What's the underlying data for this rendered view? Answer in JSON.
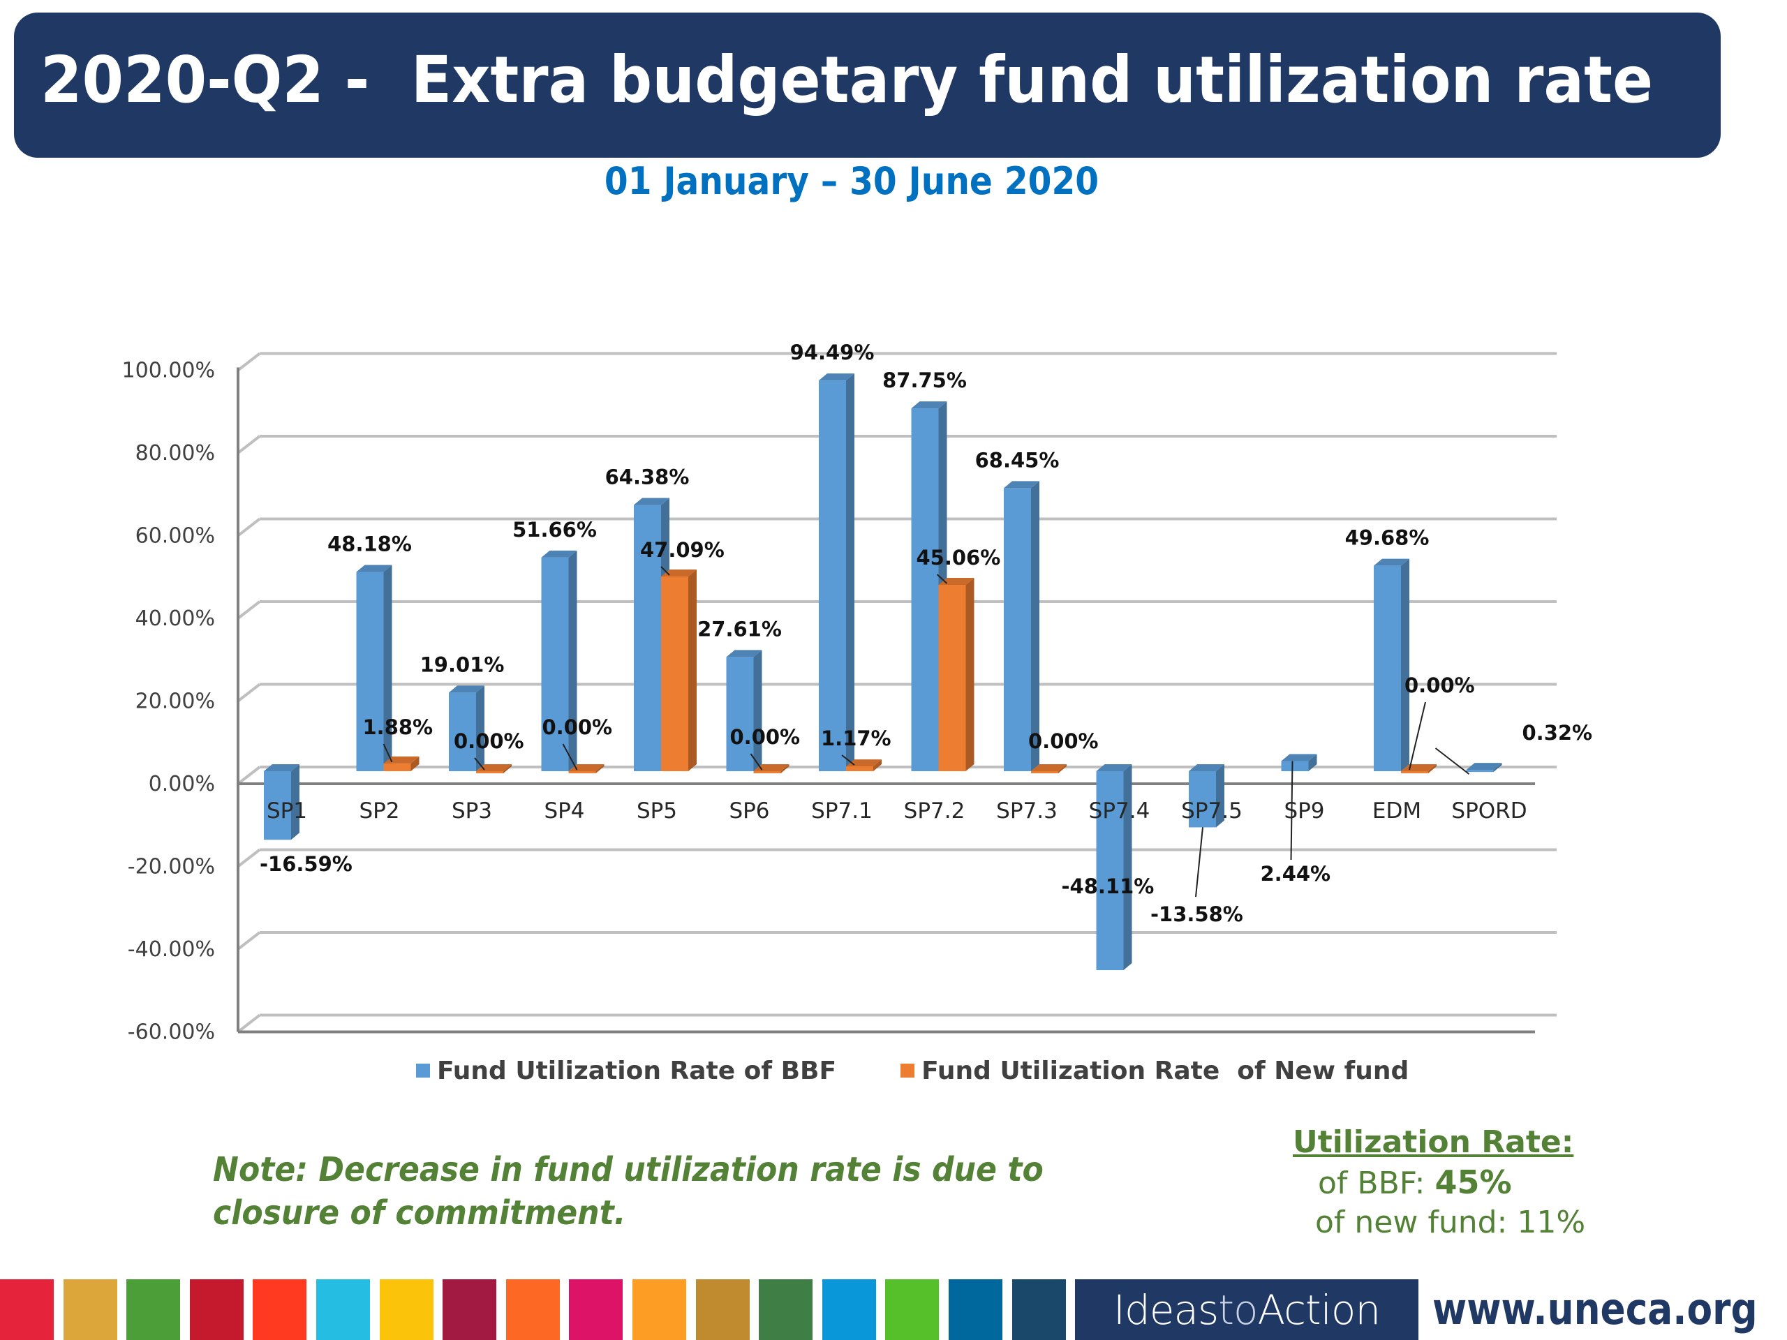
{
  "header": {
    "title": "2020-Q2 -  Extra budgetary fund utilization rate",
    "subtitle": "01 January – 30 June 2020"
  },
  "colors": {
    "title_bar": "#203864",
    "subtitle": "#0070c0",
    "bbf": "#5b9bd5",
    "new_fund": "#ed7d31",
    "note_green": "#538135",
    "grid": "#bfbfbf",
    "axis": "#808080"
  },
  "chart_data": {
    "type": "bar",
    "style": "3d-clustered-column",
    "title": "",
    "xlabel": "",
    "ylabel": "",
    "ylim": [
      -60,
      100
    ],
    "yticks": [
      100,
      80,
      60,
      40,
      20,
      0,
      -20,
      -40,
      -60
    ],
    "ytick_labels": [
      "100.00%",
      "80.00%",
      "60.00%",
      "40.00%",
      "20.00%",
      "0.00%",
      "-20.00%",
      "-40.00%",
      "-60.00%"
    ],
    "grid": true,
    "legend_position": "bottom",
    "categories": [
      "SP1",
      "SP2",
      "SP3",
      "SP4",
      "SP5",
      "SP6",
      "SP7.1",
      "SP7.2",
      "SP7.3",
      "SP7.4",
      "SP7.5",
      "SP9",
      "EDM",
      "SPORD"
    ],
    "series": [
      {
        "name": "Fund Utilization Rate of BBF",
        "color": "#5b9bd5",
        "values": [
          -16.59,
          48.18,
          19.01,
          51.66,
          64.38,
          27.61,
          94.49,
          87.75,
          68.45,
          -48.11,
          -13.58,
          2.44,
          49.68,
          0.32
        ],
        "labels": [
          "-16.59%",
          "48.18%",
          "19.01%",
          "51.66%",
          "64.38%",
          "27.61%",
          "94.49%",
          "87.75%",
          "68.45%",
          "-48.11%",
          "-13.58%",
          "2.44%",
          "49.68%",
          "0.32%"
        ]
      },
      {
        "name": "Fund Utilization Rate  of New fund",
        "color": "#ed7d31",
        "values": [
          null,
          1.88,
          0.0,
          0.0,
          47.09,
          0.0,
          1.17,
          45.06,
          0.0,
          null,
          null,
          null,
          0.0,
          null
        ],
        "labels": [
          null,
          "1.88%",
          "0.00%",
          "0.00%",
          "47.09%",
          "0.00%",
          "1.17%",
          "45.06%",
          "0.00%",
          null,
          null,
          null,
          "0.00%",
          null
        ]
      }
    ]
  },
  "legend": {
    "items": [
      {
        "label": "Fund Utilization Rate of BBF",
        "color": "#5b9bd5"
      },
      {
        "label": "Fund Utilization Rate  of New fund",
        "color": "#ed7d31"
      }
    ]
  },
  "note": {
    "text": "Note: Decrease in fund utilization rate is due to closure of commitment."
  },
  "utilization": {
    "title": "Utilization Rate:",
    "bbf_label": "of BBF: ",
    "bbf_value": "45%",
    "new_label": "of new fund: ",
    "new_value": "11%"
  },
  "footer": {
    "sdg_colors": [
      "#e5243b",
      "#dda63a",
      "#4c9f38",
      "#c5192d",
      "#ff3a21",
      "#26bde2",
      "#fcc30b",
      "#a21942",
      "#fd6925",
      "#dd1367",
      "#fd9d24",
      "#bf8b2e",
      "#3f7e44",
      "#0a97d9",
      "#56c02b",
      "#00689d",
      "#19486a"
    ],
    "banner_part1": "Ideas",
    "banner_part2": "to",
    "banner_part3": "Action",
    "website": "www.uneca.org"
  }
}
